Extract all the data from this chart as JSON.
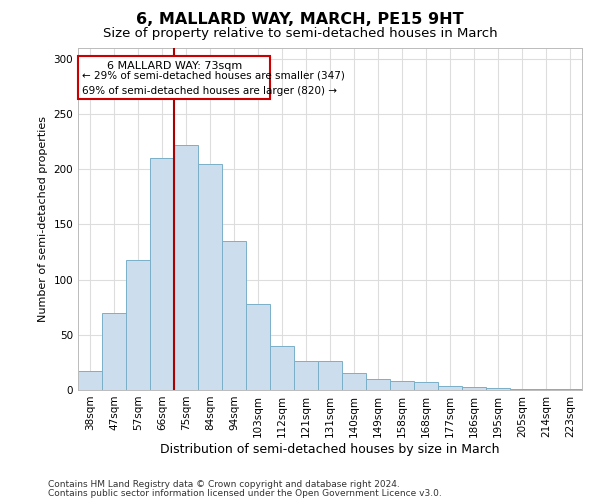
{
  "title": "6, MALLARD WAY, MARCH, PE15 9HT",
  "subtitle": "Size of property relative to semi-detached houses in March",
  "xlabel": "Distribution of semi-detached houses by size in March",
  "ylabel": "Number of semi-detached properties",
  "categories": [
    "38sqm",
    "47sqm",
    "57sqm",
    "66sqm",
    "75sqm",
    "84sqm",
    "94sqm",
    "103sqm",
    "112sqm",
    "121sqm",
    "131sqm",
    "140sqm",
    "149sqm",
    "158sqm",
    "168sqm",
    "177sqm",
    "186sqm",
    "195sqm",
    "205sqm",
    "214sqm",
    "223sqm"
  ],
  "values": [
    17,
    70,
    118,
    210,
    222,
    205,
    135,
    78,
    40,
    26,
    26,
    15,
    10,
    8,
    7,
    4,
    3,
    2,
    1,
    1,
    1
  ],
  "bar_color": "#ccdded",
  "bar_edge_color": "#7aafc8",
  "bar_edge_width": 0.7,
  "vline_color": "#aa0000",
  "vline_label": "6 MALLARD WAY: 73sqm",
  "annotation_smaller": "← 29% of semi-detached houses are smaller (347)",
  "annotation_larger": "69% of semi-detached houses are larger (820) →",
  "annotation_box_edge": "#cc0000",
  "ylim": [
    0,
    310
  ],
  "yticks": [
    0,
    50,
    100,
    150,
    200,
    250,
    300
  ],
  "grid_color": "#dddddd",
  "footer_line1": "Contains HM Land Registry data © Crown copyright and database right 2024.",
  "footer_line2": "Contains public sector information licensed under the Open Government Licence v3.0.",
  "bg_color": "#ffffff",
  "title_fontsize": 11.5,
  "subtitle_fontsize": 9.5,
  "xlabel_fontsize": 9,
  "ylabel_fontsize": 8,
  "tick_fontsize": 7.5,
  "footer_fontsize": 6.5
}
